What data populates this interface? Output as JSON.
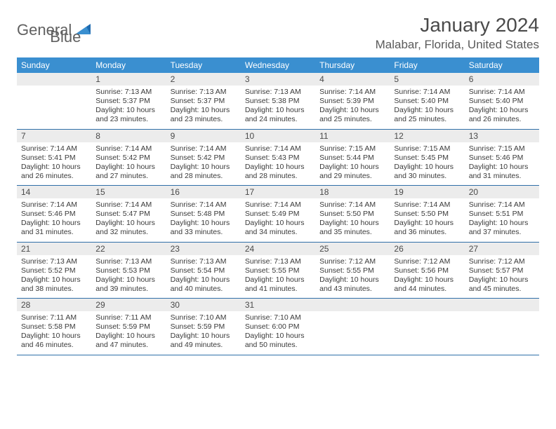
{
  "brand": {
    "word1": "General",
    "word2": "Blue"
  },
  "title": "January 2024",
  "location": "Malabar, Florida, United States",
  "colors": {
    "header_bg": "#3a8fd0",
    "header_text": "#ffffff",
    "daynum_bg": "#ececec",
    "rule": "#2f6fa8",
    "body_text": "#3a3a3a",
    "brand_grey": "#606060",
    "brand_blue": "#2f7dbb"
  },
  "days_of_week": [
    "Sunday",
    "Monday",
    "Tuesday",
    "Wednesday",
    "Thursday",
    "Friday",
    "Saturday"
  ],
  "first_weekday_index": 1,
  "days": [
    {
      "n": 1,
      "sunrise": "7:13 AM",
      "sunset": "5:37 PM",
      "daylight": "10 hours and 23 minutes."
    },
    {
      "n": 2,
      "sunrise": "7:13 AM",
      "sunset": "5:37 PM",
      "daylight": "10 hours and 23 minutes."
    },
    {
      "n": 3,
      "sunrise": "7:13 AM",
      "sunset": "5:38 PM",
      "daylight": "10 hours and 24 minutes."
    },
    {
      "n": 4,
      "sunrise": "7:14 AM",
      "sunset": "5:39 PM",
      "daylight": "10 hours and 25 minutes."
    },
    {
      "n": 5,
      "sunrise": "7:14 AM",
      "sunset": "5:40 PM",
      "daylight": "10 hours and 25 minutes."
    },
    {
      "n": 6,
      "sunrise": "7:14 AM",
      "sunset": "5:40 PM",
      "daylight": "10 hours and 26 minutes."
    },
    {
      "n": 7,
      "sunrise": "7:14 AM",
      "sunset": "5:41 PM",
      "daylight": "10 hours and 26 minutes."
    },
    {
      "n": 8,
      "sunrise": "7:14 AM",
      "sunset": "5:42 PM",
      "daylight": "10 hours and 27 minutes."
    },
    {
      "n": 9,
      "sunrise": "7:14 AM",
      "sunset": "5:42 PM",
      "daylight": "10 hours and 28 minutes."
    },
    {
      "n": 10,
      "sunrise": "7:14 AM",
      "sunset": "5:43 PM",
      "daylight": "10 hours and 28 minutes."
    },
    {
      "n": 11,
      "sunrise": "7:15 AM",
      "sunset": "5:44 PM",
      "daylight": "10 hours and 29 minutes."
    },
    {
      "n": 12,
      "sunrise": "7:15 AM",
      "sunset": "5:45 PM",
      "daylight": "10 hours and 30 minutes."
    },
    {
      "n": 13,
      "sunrise": "7:15 AM",
      "sunset": "5:46 PM",
      "daylight": "10 hours and 31 minutes."
    },
    {
      "n": 14,
      "sunrise": "7:14 AM",
      "sunset": "5:46 PM",
      "daylight": "10 hours and 31 minutes."
    },
    {
      "n": 15,
      "sunrise": "7:14 AM",
      "sunset": "5:47 PM",
      "daylight": "10 hours and 32 minutes."
    },
    {
      "n": 16,
      "sunrise": "7:14 AM",
      "sunset": "5:48 PM",
      "daylight": "10 hours and 33 minutes."
    },
    {
      "n": 17,
      "sunrise": "7:14 AM",
      "sunset": "5:49 PM",
      "daylight": "10 hours and 34 minutes."
    },
    {
      "n": 18,
      "sunrise": "7:14 AM",
      "sunset": "5:50 PM",
      "daylight": "10 hours and 35 minutes."
    },
    {
      "n": 19,
      "sunrise": "7:14 AM",
      "sunset": "5:50 PM",
      "daylight": "10 hours and 36 minutes."
    },
    {
      "n": 20,
      "sunrise": "7:14 AM",
      "sunset": "5:51 PM",
      "daylight": "10 hours and 37 minutes."
    },
    {
      "n": 21,
      "sunrise": "7:13 AM",
      "sunset": "5:52 PM",
      "daylight": "10 hours and 38 minutes."
    },
    {
      "n": 22,
      "sunrise": "7:13 AM",
      "sunset": "5:53 PM",
      "daylight": "10 hours and 39 minutes."
    },
    {
      "n": 23,
      "sunrise": "7:13 AM",
      "sunset": "5:54 PM",
      "daylight": "10 hours and 40 minutes."
    },
    {
      "n": 24,
      "sunrise": "7:13 AM",
      "sunset": "5:55 PM",
      "daylight": "10 hours and 41 minutes."
    },
    {
      "n": 25,
      "sunrise": "7:12 AM",
      "sunset": "5:55 PM",
      "daylight": "10 hours and 43 minutes."
    },
    {
      "n": 26,
      "sunrise": "7:12 AM",
      "sunset": "5:56 PM",
      "daylight": "10 hours and 44 minutes."
    },
    {
      "n": 27,
      "sunrise": "7:12 AM",
      "sunset": "5:57 PM",
      "daylight": "10 hours and 45 minutes."
    },
    {
      "n": 28,
      "sunrise": "7:11 AM",
      "sunset": "5:58 PM",
      "daylight": "10 hours and 46 minutes."
    },
    {
      "n": 29,
      "sunrise": "7:11 AM",
      "sunset": "5:59 PM",
      "daylight": "10 hours and 47 minutes."
    },
    {
      "n": 30,
      "sunrise": "7:10 AM",
      "sunset": "5:59 PM",
      "daylight": "10 hours and 49 minutes."
    },
    {
      "n": 31,
      "sunrise": "7:10 AM",
      "sunset": "6:00 PM",
      "daylight": "10 hours and 50 minutes."
    }
  ]
}
